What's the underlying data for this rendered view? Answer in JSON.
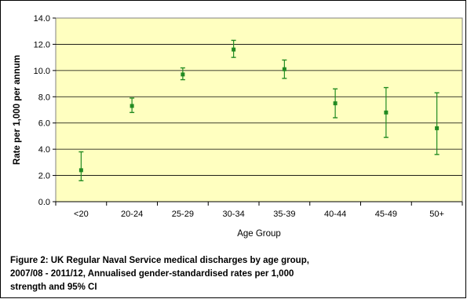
{
  "chart_data": {
    "type": "scatter",
    "xlabel": "Age Group",
    "ylabel": "Rate per 1,000 per annum",
    "ylim": [
      0,
      14
    ],
    "yticks": [
      "0.0",
      "2.0",
      "4.0",
      "6.0",
      "8.0",
      "10.0",
      "12.0",
      "14.0"
    ],
    "grid": true,
    "plot_background": "#FFFFC0",
    "marker_color": "#228B22",
    "errorbar_color": "#228B22",
    "categories": [
      "<20",
      "20-24",
      "25-29",
      "30-34",
      "35-39",
      "40-44",
      "45-49",
      "50+"
    ],
    "series": [
      {
        "values": [
          2.4,
          7.3,
          9.7,
          11.6,
          10.1,
          7.5,
          6.8,
          5.6
        ],
        "ci_lower": [
          1.6,
          6.8,
          9.3,
          11.0,
          9.4,
          6.4,
          4.9,
          3.6
        ],
        "ci_upper": [
          3.8,
          7.9,
          10.2,
          12.3,
          10.8,
          8.6,
          8.7,
          8.3
        ]
      }
    ]
  },
  "caption": {
    "line1": "Figure 2: UK Regular Naval Service medical discharges by age group,",
    "line2": "2007/08 - 2011/12, Annualised gender-standardised rates per 1,000",
    "line3": "strength and 95% CI"
  }
}
